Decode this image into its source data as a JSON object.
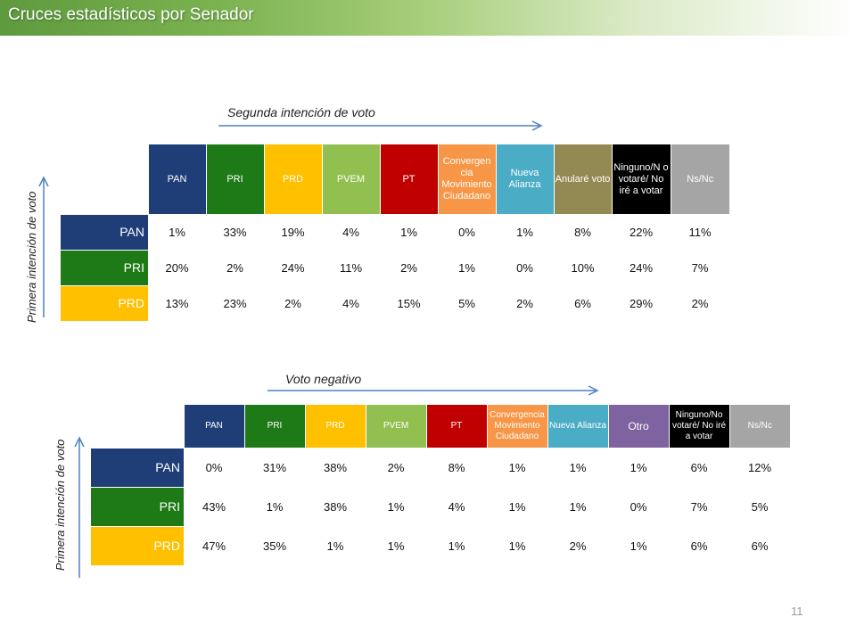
{
  "slide": {
    "title": "Cruces estadísticos por Senador",
    "page_number": "11"
  },
  "colors": {
    "PAN": "#1f3e78",
    "PRI": "#1e7a17",
    "PRD": "#ffc000",
    "PVEM": "#92c050",
    "PT": "#c00000",
    "Convergencia": "#f79646",
    "Nueva Alianza": "#4bacc6",
    "Anulare": "#938953",
    "Otro": "#7f62a0",
    "Ninguno": "#000000",
    "NsNc": "#a5a5a5"
  },
  "table1": {
    "arrow_label": "Segunda intención de voto",
    "side_label": "Primera intención de voto",
    "columns": [
      "PAN",
      "PRI",
      "PRD",
      "PVEM",
      "PT",
      "Convergen cia Movimiento Ciudadano",
      "Nueva Alianza",
      "Anularé voto",
      "Ninguno/N o votaré/ No iré a votar",
      "Ns/Nc"
    ],
    "rows": [
      {
        "label": "PAN",
        "values": [
          "1%",
          "33%",
          "19%",
          "4%",
          "1%",
          "0%",
          "1%",
          "8%",
          "22%",
          "11%"
        ]
      },
      {
        "label": "PRI",
        "values": [
          "20%",
          "2%",
          "24%",
          "11%",
          "2%",
          "1%",
          "0%",
          "10%",
          "24%",
          "7%"
        ]
      },
      {
        "label": "PRD",
        "values": [
          "13%",
          "23%",
          "2%",
          "4%",
          "15%",
          "5%",
          "2%",
          "6%",
          "29%",
          "2%"
        ]
      }
    ]
  },
  "table2": {
    "arrow_label": "Voto negativo",
    "side_label": "Primera intención de voto",
    "columns": [
      "PAN",
      "PRI",
      "PRD",
      "PVEM",
      "PT",
      "Convergencia Movimiento Ciudadano",
      "Nueva Alianza",
      "Otro",
      "Ninguno/No votaré/ No iré a votar",
      "Ns/Nc"
    ],
    "rows": [
      {
        "label": "PAN",
        "values": [
          "0%",
          "31%",
          "38%",
          "2%",
          "8%",
          "1%",
          "1%",
          "1%",
          "6%",
          "12%"
        ]
      },
      {
        "label": "PRI",
        "values": [
          "43%",
          "1%",
          "38%",
          "1%",
          "4%",
          "1%",
          "1%",
          "0%",
          "7%",
          "5%"
        ]
      },
      {
        "label": "PRD",
        "values": [
          "47%",
          "35%",
          "1%",
          "1%",
          "1%",
          "1%",
          "2%",
          "1%",
          "6%",
          "6%"
        ]
      }
    ]
  }
}
